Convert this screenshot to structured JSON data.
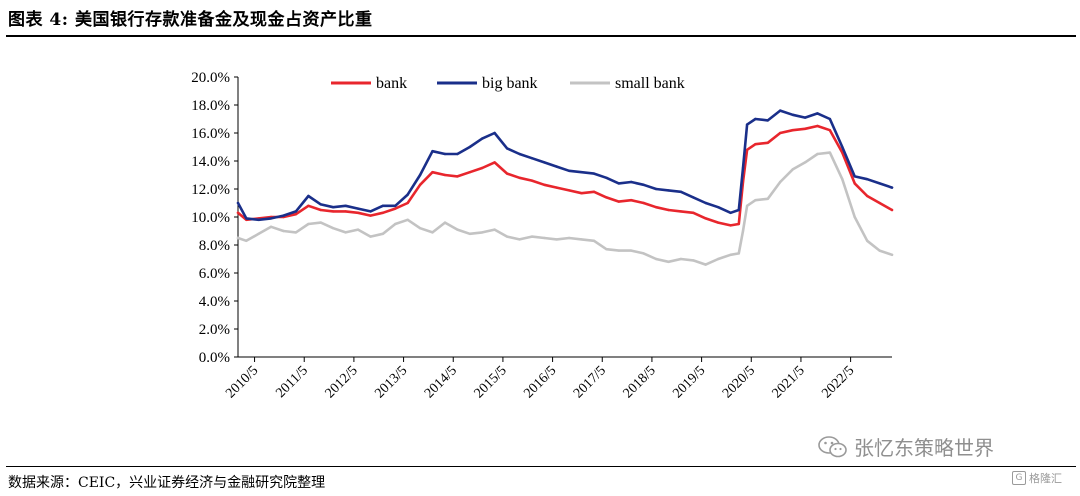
{
  "header": {
    "title": "图表 4:  美国银行存款准备金及现金占资产比重"
  },
  "footer": {
    "source": "数据来源：CEIC，兴业证券经济与金融研究院整理"
  },
  "watermark": {
    "text": "张忆东策略世界"
  },
  "corner": {
    "logo_char": "G",
    "label": "格隆汇"
  },
  "colors": {
    "bank": "#e8262d",
    "big_bank": "#1a2f8a",
    "small_bank": "#c3c3c3"
  },
  "chart_data": {
    "type": "line",
    "title": "",
    "xlabel": "",
    "ylabel": "",
    "x_unit": "month",
    "x_start": "2010-01",
    "x_end": "2023-03",
    "x_tick_labels": [
      "2010/5",
      "2011/5",
      "2012/5",
      "2013/5",
      "2014/5",
      "2015/5",
      "2016/5",
      "2017/5",
      "2018/5",
      "2019/5",
      "2020/5",
      "2021/5",
      "2022/5"
    ],
    "x_tick_dates": [
      "2010-05",
      "2011-05",
      "2012-05",
      "2013-05",
      "2014-05",
      "2015-05",
      "2016-05",
      "2017-05",
      "2018-05",
      "2019-05",
      "2020-05",
      "2021-05",
      "2022-05"
    ],
    "y_ticks": [
      "0.0%",
      "2.0%",
      "4.0%",
      "6.0%",
      "8.0%",
      "10.0%",
      "12.0%",
      "14.0%",
      "16.0%",
      "18.0%",
      "20.0%"
    ],
    "ylim": [
      0,
      20
    ],
    "y_format": "percent",
    "grid": false,
    "legend": "top",
    "series": [
      {
        "name": "bank",
        "color": "#e8262d",
        "points": [
          [
            "2010-01",
            10.3
          ],
          [
            "2010-03",
            9.8
          ],
          [
            "2010-06",
            9.9
          ],
          [
            "2010-09",
            10.0
          ],
          [
            "2010-12",
            10.0
          ],
          [
            "2011-03",
            10.2
          ],
          [
            "2011-06",
            10.8
          ],
          [
            "2011-09",
            10.5
          ],
          [
            "2011-12",
            10.4
          ],
          [
            "2012-03",
            10.4
          ],
          [
            "2012-06",
            10.3
          ],
          [
            "2012-09",
            10.1
          ],
          [
            "2012-12",
            10.3
          ],
          [
            "2013-03",
            10.6
          ],
          [
            "2013-06",
            11.0
          ],
          [
            "2013-09",
            12.3
          ],
          [
            "2013-12",
            13.2
          ],
          [
            "2014-03",
            13.0
          ],
          [
            "2014-06",
            12.9
          ],
          [
            "2014-09",
            13.2
          ],
          [
            "2014-12",
            13.5
          ],
          [
            "2015-03",
            13.9
          ],
          [
            "2015-06",
            13.1
          ],
          [
            "2015-09",
            12.8
          ],
          [
            "2015-12",
            12.6
          ],
          [
            "2016-03",
            12.3
          ],
          [
            "2016-06",
            12.1
          ],
          [
            "2016-09",
            11.9
          ],
          [
            "2016-12",
            11.7
          ],
          [
            "2017-03",
            11.8
          ],
          [
            "2017-06",
            11.4
          ],
          [
            "2017-09",
            11.1
          ],
          [
            "2017-12",
            11.2
          ],
          [
            "2018-03",
            11.0
          ],
          [
            "2018-06",
            10.7
          ],
          [
            "2018-09",
            10.5
          ],
          [
            "2018-12",
            10.4
          ],
          [
            "2019-03",
            10.3
          ],
          [
            "2019-06",
            9.9
          ],
          [
            "2019-09",
            9.6
          ],
          [
            "2019-12",
            9.4
          ],
          [
            "2020-02",
            9.5
          ],
          [
            "2020-03",
            12.5
          ],
          [
            "2020-04",
            14.8
          ],
          [
            "2020-06",
            15.2
          ],
          [
            "2020-09",
            15.3
          ],
          [
            "2020-12",
            16.0
          ],
          [
            "2021-03",
            16.2
          ],
          [
            "2021-06",
            16.3
          ],
          [
            "2021-09",
            16.5
          ],
          [
            "2021-12",
            16.2
          ],
          [
            "2022-03",
            14.6
          ],
          [
            "2022-06",
            12.4
          ],
          [
            "2022-09",
            11.5
          ],
          [
            "2022-12",
            11.0
          ],
          [
            "2023-03",
            10.5
          ]
        ]
      },
      {
        "name": "big bank",
        "color": "#1a2f8a",
        "points": [
          [
            "2010-01",
            11.0
          ],
          [
            "2010-03",
            9.9
          ],
          [
            "2010-06",
            9.8
          ],
          [
            "2010-09",
            9.9
          ],
          [
            "2010-12",
            10.1
          ],
          [
            "2011-03",
            10.4
          ],
          [
            "2011-06",
            11.5
          ],
          [
            "2011-09",
            10.9
          ],
          [
            "2011-12",
            10.7
          ],
          [
            "2012-03",
            10.8
          ],
          [
            "2012-06",
            10.6
          ],
          [
            "2012-09",
            10.4
          ],
          [
            "2012-12",
            10.8
          ],
          [
            "2013-03",
            10.8
          ],
          [
            "2013-06",
            11.6
          ],
          [
            "2013-09",
            13.0
          ],
          [
            "2013-12",
            14.7
          ],
          [
            "2014-03",
            14.5
          ],
          [
            "2014-06",
            14.5
          ],
          [
            "2014-09",
            15.0
          ],
          [
            "2014-12",
            15.6
          ],
          [
            "2015-03",
            16.0
          ],
          [
            "2015-06",
            14.9
          ],
          [
            "2015-09",
            14.5
          ],
          [
            "2015-12",
            14.2
          ],
          [
            "2016-03",
            13.9
          ],
          [
            "2016-06",
            13.6
          ],
          [
            "2016-09",
            13.3
          ],
          [
            "2016-12",
            13.2
          ],
          [
            "2017-03",
            13.1
          ],
          [
            "2017-06",
            12.8
          ],
          [
            "2017-09",
            12.4
          ],
          [
            "2017-12",
            12.5
          ],
          [
            "2018-03",
            12.3
          ],
          [
            "2018-06",
            12.0
          ],
          [
            "2018-09",
            11.9
          ],
          [
            "2018-12",
            11.8
          ],
          [
            "2019-03",
            11.4
          ],
          [
            "2019-06",
            11.0
          ],
          [
            "2019-09",
            10.7
          ],
          [
            "2019-12",
            10.3
          ],
          [
            "2020-02",
            10.5
          ],
          [
            "2020-03",
            13.5
          ],
          [
            "2020-04",
            16.6
          ],
          [
            "2020-06",
            17.0
          ],
          [
            "2020-09",
            16.9
          ],
          [
            "2020-12",
            17.6
          ],
          [
            "2021-03",
            17.3
          ],
          [
            "2021-06",
            17.1
          ],
          [
            "2021-09",
            17.4
          ],
          [
            "2021-12",
            17.0
          ],
          [
            "2022-03",
            15.0
          ],
          [
            "2022-06",
            12.9
          ],
          [
            "2022-09",
            12.7
          ],
          [
            "2022-12",
            12.4
          ],
          [
            "2023-03",
            12.1
          ]
        ]
      },
      {
        "name": "small bank",
        "color": "#c3c3c3",
        "points": [
          [
            "2010-01",
            8.5
          ],
          [
            "2010-03",
            8.3
          ],
          [
            "2010-06",
            8.8
          ],
          [
            "2010-09",
            9.3
          ],
          [
            "2010-12",
            9.0
          ],
          [
            "2011-03",
            8.9
          ],
          [
            "2011-06",
            9.5
          ],
          [
            "2011-09",
            9.6
          ],
          [
            "2011-12",
            9.2
          ],
          [
            "2012-03",
            8.9
          ],
          [
            "2012-06",
            9.1
          ],
          [
            "2012-09",
            8.6
          ],
          [
            "2012-12",
            8.8
          ],
          [
            "2013-03",
            9.5
          ],
          [
            "2013-06",
            9.8
          ],
          [
            "2013-09",
            9.2
          ],
          [
            "2013-12",
            8.9
          ],
          [
            "2014-03",
            9.6
          ],
          [
            "2014-06",
            9.1
          ],
          [
            "2014-09",
            8.8
          ],
          [
            "2014-12",
            8.9
          ],
          [
            "2015-03",
            9.1
          ],
          [
            "2015-06",
            8.6
          ],
          [
            "2015-09",
            8.4
          ],
          [
            "2015-12",
            8.6
          ],
          [
            "2016-03",
            8.5
          ],
          [
            "2016-06",
            8.4
          ],
          [
            "2016-09",
            8.5
          ],
          [
            "2016-12",
            8.4
          ],
          [
            "2017-03",
            8.3
          ],
          [
            "2017-06",
            7.7
          ],
          [
            "2017-09",
            7.6
          ],
          [
            "2017-12",
            7.6
          ],
          [
            "2018-03",
            7.4
          ],
          [
            "2018-06",
            7.0
          ],
          [
            "2018-09",
            6.8
          ],
          [
            "2018-12",
            7.0
          ],
          [
            "2019-03",
            6.9
          ],
          [
            "2019-06",
            6.6
          ],
          [
            "2019-09",
            7.0
          ],
          [
            "2019-12",
            7.3
          ],
          [
            "2020-02",
            7.4
          ],
          [
            "2020-03",
            9.0
          ],
          [
            "2020-04",
            10.8
          ],
          [
            "2020-06",
            11.2
          ],
          [
            "2020-09",
            11.3
          ],
          [
            "2020-12",
            12.5
          ],
          [
            "2021-03",
            13.4
          ],
          [
            "2021-06",
            13.9
          ],
          [
            "2021-09",
            14.5
          ],
          [
            "2021-12",
            14.6
          ],
          [
            "2022-03",
            12.7
          ],
          [
            "2022-06",
            10.0
          ],
          [
            "2022-09",
            8.3
          ],
          [
            "2022-12",
            7.6
          ],
          [
            "2023-03",
            7.3
          ]
        ]
      }
    ]
  }
}
